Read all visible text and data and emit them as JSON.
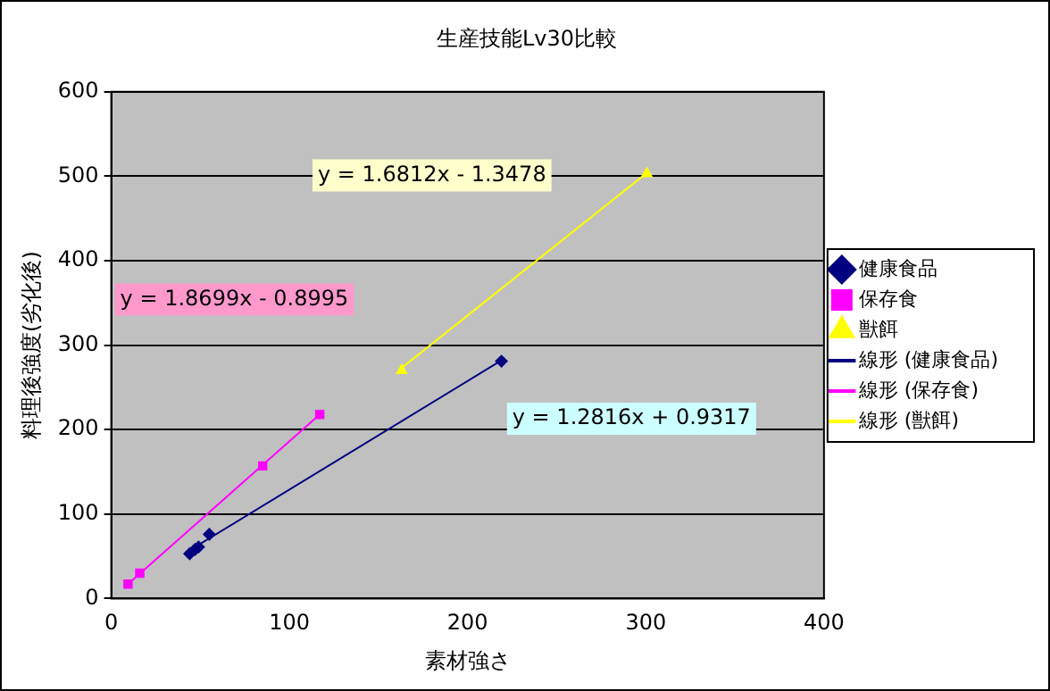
{
  "chart_data": {
    "type": "scatter",
    "title": "生産技能Lv30比較",
    "xlabel": "素材強さ",
    "ylabel": "料理後強度(劣化後)",
    "series": [
      {
        "name": "健康食品",
        "color": "#000080",
        "marker": "diamond",
        "x": [
          44,
          47,
          49,
          55,
          219
        ],
        "values": [
          53,
          58,
          61,
          76,
          281
        ]
      },
      {
        "name": "保存食",
        "color": "#ff00ff",
        "marker": "square",
        "x": [
          9.4,
          16,
          85,
          117
        ],
        "values": [
          17,
          30,
          157,
          218
        ]
      },
      {
        "name": "獣餌",
        "color": "#ffff00",
        "marker": "triangle",
        "x": [
          163,
          300.6
        ],
        "values": [
          270,
          503
        ]
      },
      {
        "name": "線形 (健康食品)",
        "type": "line",
        "color": "#000080",
        "marker": "none",
        "x": [
          44,
          219
        ],
        "values": [
          57,
          282
        ]
      },
      {
        "name": "線形 (保存食)",
        "type": "line",
        "color": "#ff00ff",
        "marker": "none",
        "x": [
          9.4,
          117
        ],
        "values": [
          17,
          218
        ]
      },
      {
        "name": "線形 (獣餌)",
        "type": "line",
        "color": "#ffff00",
        "marker": "none",
        "x": [
          163,
          300.6
        ],
        "values": [
          273,
          504
        ]
      }
    ],
    "annotations": [
      "y = 1.2816x + 0.9317",
      "y = 1.8699x - 0.8995",
      "y = 1.6812x - 1.3478"
    ],
    "xlim": [
      0,
      400
    ],
    "xticks": [
      0,
      100,
      200,
      300,
      400
    ],
    "ylim": [
      0,
      600
    ],
    "yticks": [
      0,
      100,
      200,
      300,
      400,
      500,
      600
    ],
    "grid": "y",
    "legend": "right"
  }
}
